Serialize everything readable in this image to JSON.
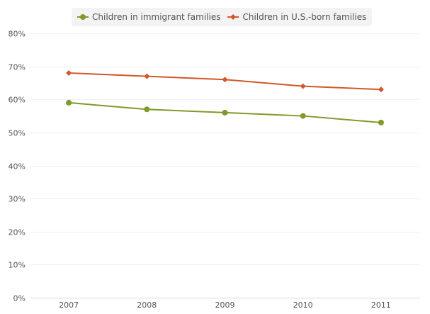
{
  "chart_data": {
    "type": "line",
    "title": "",
    "xlabel": "",
    "ylabel": "",
    "categories": [
      "2007",
      "2008",
      "2009",
      "2010",
      "2011"
    ],
    "ylim": [
      0,
      80
    ],
    "yticks": [
      0,
      10,
      20,
      30,
      40,
      50,
      60,
      70,
      80
    ],
    "ytick_labels": [
      "0%",
      "10%",
      "20%",
      "30%",
      "40%",
      "50%",
      "60%",
      "70%",
      "80%"
    ],
    "grid": true,
    "legend_position": "top-center",
    "series": [
      {
        "name": "Children in immigrant families",
        "color": "#7e9a2a",
        "marker": "circle",
        "values": [
          59,
          57,
          56,
          55,
          53
        ]
      },
      {
        "name": "Children in U.S.-born families",
        "color": "#d2572a",
        "marker": "diamond",
        "values": [
          68,
          67,
          66,
          64,
          63
        ]
      }
    ]
  }
}
